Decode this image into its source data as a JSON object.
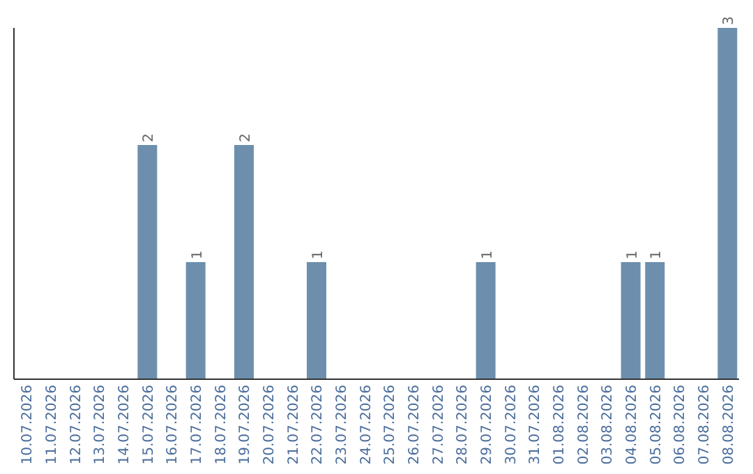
{
  "chart_data": {
    "type": "bar",
    "categories": [
      "10.07.2026",
      "11.07.2026",
      "12.07.2026",
      "13.07.2026",
      "14.07.2026",
      "15.07.2026",
      "16.07.2026",
      "17.07.2026",
      "18.07.2026",
      "19.07.2026",
      "20.07.2026",
      "21.07.2026",
      "22.07.2026",
      "23.07.2026",
      "24.07.2026",
      "25.07.2026",
      "26.07.2026",
      "27.07.2026",
      "28.07.2026",
      "29.07.2026",
      "30.07.2026",
      "31.07.2026",
      "01.08.2026",
      "02.08.2026",
      "03.08.2026",
      "04.08.2026",
      "05.08.2026",
      "06.08.2026",
      "07.08.2026",
      "08.08.2026"
    ],
    "values": [
      0,
      0,
      0,
      0,
      0,
      2,
      0,
      1,
      0,
      2,
      0,
      0,
      1,
      0,
      0,
      0,
      0,
      0,
      0,
      1,
      0,
      0,
      0,
      0,
      0,
      1,
      1,
      0,
      0,
      3
    ],
    "value_labels": [
      null,
      null,
      null,
      null,
      null,
      "2",
      null,
      "1",
      null,
      "2",
      null,
      null,
      "1",
      null,
      null,
      null,
      null,
      null,
      null,
      "1",
      null,
      null,
      null,
      null,
      null,
      "1",
      "1",
      null,
      null,
      "3"
    ],
    "color": "#6d8fad",
    "tick_labels": "x"
  }
}
